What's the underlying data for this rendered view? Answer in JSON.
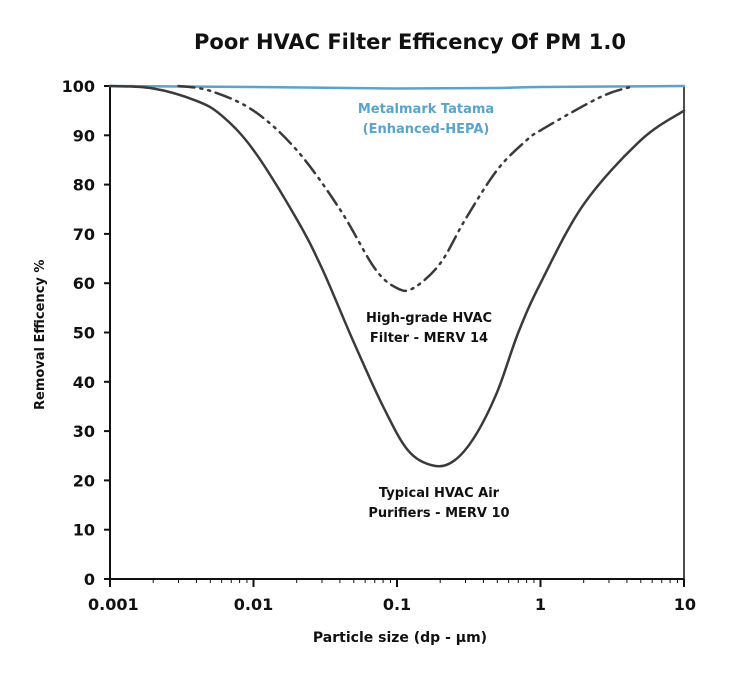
{
  "chart_data": {
    "type": "line",
    "title": "Poor HVAC Filter Efficency Of PM 1.0",
    "xlabel": "Particle size (dp - µm)",
    "ylabel": "Removal Efficency %",
    "x_scale": "log",
    "xlim": [
      0.001,
      10
    ],
    "ylim": [
      0,
      100
    ],
    "x_ticks": [
      "0.001",
      "0.01",
      "0.1",
      "1",
      "10"
    ],
    "y_ticks": [
      "0",
      "10",
      "20",
      "30",
      "40",
      "50",
      "60",
      "70",
      "80",
      "90",
      "100"
    ],
    "grid": false,
    "legend": "none",
    "series": [
      {
        "name": "Metalmark Tatama (Enhanced-HEPA)",
        "style": "solid",
        "color": "#5aa3cc",
        "x": [
          0.001,
          0.01,
          0.1,
          0.5,
          1,
          10
        ],
        "y": [
          100,
          99.8,
          99.5,
          99.6,
          99.8,
          100
        ]
      },
      {
        "name": "High-grade HVAC Filter - MERV 14",
        "style": "dash-dot-dot",
        "color": "#3a3a3a",
        "x": [
          0.003,
          0.005,
          0.01,
          0.02,
          0.04,
          0.07,
          0.1,
          0.13,
          0.2,
          0.3,
          0.5,
          0.8,
          1,
          2,
          3,
          4.5
        ],
        "y": [
          100,
          99,
          95,
          87,
          75,
          63,
          59,
          59,
          64,
          73,
          83,
          89,
          91,
          96,
          98.5,
          100
        ]
      },
      {
        "name": "Typical HVAC Air Purifiers - MERV 10",
        "style": "solid",
        "color": "#3a3a3a",
        "x": [
          0.001,
          0.002,
          0.004,
          0.006,
          0.01,
          0.02,
          0.03,
          0.05,
          0.08,
          0.12,
          0.18,
          0.25,
          0.35,
          0.5,
          0.7,
          1,
          2,
          5,
          10
        ],
        "y": [
          100,
          99.5,
          97,
          94,
          87,
          73,
          63,
          48,
          35,
          26,
          23,
          24,
          29,
          38,
          50,
          60,
          76,
          89,
          95
        ]
      }
    ],
    "annotations": {
      "hepa_line1": "Metalmark Tatama",
      "hepa_line2": "(Enhanced-HEPA)",
      "merv14_line1": "High-grade HVAC",
      "merv14_line2": "Filter - MERV 14",
      "merv10_line1": "Typical HVAC Air",
      "merv10_line2": "Purifiers - MERV 10"
    }
  }
}
